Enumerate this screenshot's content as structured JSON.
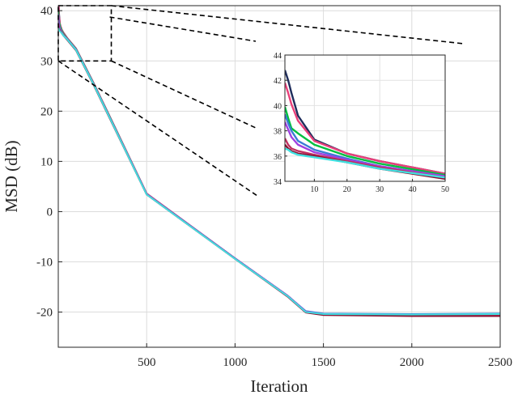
{
  "chart_data": {
    "type": "line",
    "xlabel": "Iteration",
    "ylabel": "MSD (dB)",
    "xlim": [
      0,
      2500
    ],
    "ylim": [
      -27,
      41
    ],
    "xticks": [
      500,
      1000,
      1500,
      2000,
      2500
    ],
    "xtick_labels": [
      "500",
      "1000",
      "1500",
      "2000",
      "2500"
    ],
    "yticks": [
      40,
      30,
      20,
      10,
      0,
      -10,
      -20
    ],
    "ytick_labels": [
      "40",
      "30",
      "20",
      "10",
      "0",
      "-10",
      "-20"
    ],
    "grid": true,
    "legend": "none",
    "zoom_region": {
      "x": [
        0,
        300
      ],
      "y": [
        30,
        41
      ]
    },
    "series": [
      {
        "color": "#1f2d5c",
        "x": [
          1,
          2,
          3,
          5,
          10,
          20,
          30,
          50,
          100,
          200,
          300,
          500,
          1000,
          1300,
          1400,
          1500,
          2000,
          2500
        ],
        "y": [
          42.8,
          42.0,
          41.0,
          39.2,
          37.3,
          36.2,
          35.6,
          34.6,
          32.5,
          25.6,
          18.3,
          3.6,
          -9.3,
          -16.8,
          -19.9,
          -20.4,
          -20.6,
          -20.5
        ]
      },
      {
        "color": "#e8407a",
        "x": [
          1,
          2,
          3,
          5,
          10,
          20,
          30,
          50,
          100,
          200,
          300,
          500,
          1000,
          1300,
          1400,
          1500,
          2000,
          2500
        ],
        "y": [
          41.8,
          41.0,
          40.1,
          38.8,
          37.2,
          36.2,
          35.6,
          34.6,
          32.5,
          25.6,
          18.3,
          3.6,
          -9.3,
          -16.8,
          -19.9,
          -20.4,
          -20.6,
          -20.6
        ]
      },
      {
        "color": "#00c040",
        "x": [
          1,
          2,
          3,
          5,
          10,
          20,
          30,
          50,
          100,
          200,
          300,
          500,
          1000,
          1300,
          1400,
          1500,
          2000,
          2500
        ],
        "y": [
          39.9,
          39.0,
          38.2,
          37.8,
          36.9,
          36.0,
          35.4,
          34.5,
          32.4,
          25.5,
          18.2,
          3.5,
          -9.3,
          -16.8,
          -19.9,
          -20.4,
          -20.6,
          -20.5
        ]
      },
      {
        "color": "#3a7bd5",
        "x": [
          1,
          2,
          3,
          5,
          10,
          20,
          30,
          50,
          100,
          200,
          300,
          500,
          1000,
          1300,
          1400,
          1500,
          2000,
          2500
        ],
        "y": [
          39.3,
          38.6,
          38.0,
          37.2,
          36.5,
          35.8,
          35.2,
          34.4,
          32.3,
          25.4,
          18.1,
          3.5,
          -9.3,
          -16.8,
          -19.8,
          -20.3,
          -20.4,
          -20.3
        ]
      },
      {
        "color": "#a040e0",
        "x": [
          1,
          2,
          3,
          5,
          10,
          20,
          30,
          50,
          100,
          200,
          300,
          500,
          1000,
          1300,
          1400,
          1500,
          2000,
          2500
        ],
        "y": [
          38.7,
          38.1,
          37.5,
          36.9,
          36.3,
          35.7,
          35.2,
          34.4,
          32.3,
          25.4,
          18.1,
          3.5,
          -9.3,
          -16.8,
          -19.9,
          -20.4,
          -20.6,
          -20.6
        ]
      },
      {
        "color": "#c03060",
        "x": [
          1,
          2,
          3,
          5,
          10,
          20,
          30,
          50,
          100,
          200,
          300,
          500,
          1000,
          1300,
          1400,
          1500,
          2000,
          2500
        ],
        "y": [
          37.4,
          36.9,
          36.6,
          36.4,
          36.1,
          35.6,
          35.1,
          34.3,
          32.2,
          25.3,
          18.0,
          3.4,
          -9.4,
          -16.9,
          -20.0,
          -20.5,
          -20.7,
          -20.7
        ]
      },
      {
        "color": "#8a1030",
        "x": [
          1,
          2,
          3,
          5,
          10,
          20,
          30,
          50,
          100,
          200,
          300,
          500,
          1000,
          1300,
          1400,
          1500,
          2000,
          2500
        ],
        "y": [
          36.9,
          36.6,
          36.4,
          36.2,
          36.0,
          35.5,
          35.0,
          34.2,
          32.1,
          25.2,
          17.9,
          3.4,
          -9.4,
          -17.0,
          -20.1,
          -20.6,
          -20.8,
          -20.8
        ]
      },
      {
        "color": "#40e0e0",
        "x": [
          1,
          2,
          3,
          5,
          10,
          20,
          30,
          50,
          100,
          200,
          300,
          500,
          1000,
          1300,
          1400,
          1500,
          2000,
          2500
        ],
        "y": [
          36.6,
          36.5,
          36.3,
          36.1,
          35.9,
          35.5,
          35.0,
          34.3,
          32.2,
          25.3,
          18.0,
          3.4,
          -9.4,
          -16.9,
          -20.0,
          -20.4,
          -20.5,
          -20.4
        ]
      }
    ],
    "inset": {
      "xlim": [
        1,
        50
      ],
      "ylim": [
        34,
        44
      ],
      "xticks": [
        10,
        20,
        30,
        40,
        50
      ],
      "xtick_labels": [
        "10",
        "20",
        "30",
        "40",
        "50"
      ],
      "yticks": [
        34,
        36,
        38,
        40,
        42,
        44
      ],
      "ytick_labels": [
        "34",
        "36",
        "38",
        "40",
        "42",
        "44"
      ]
    }
  }
}
